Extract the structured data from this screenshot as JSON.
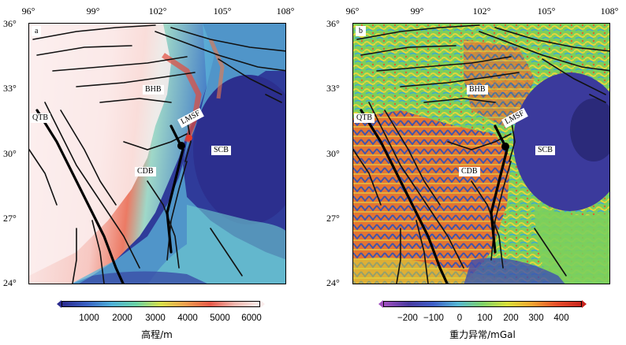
{
  "panels": [
    {
      "label": "a",
      "lon_ticks": [
        "96°",
        "99°",
        "102°",
        "105°",
        "108°"
      ],
      "lat_ticks": [
        "36°",
        "33°",
        "30°",
        "27°",
        "24°"
      ],
      "places": [
        "BHB",
        "QTB",
        "LMSF",
        "SCB",
        "CDB"
      ],
      "colorbar": {
        "ticks": [
          "1000",
          "2000",
          "3000",
          "4000",
          "5000",
          "6000"
        ],
        "title": "高程/m",
        "colors": [
          "#2b2b8f",
          "#3a62c4",
          "#4fb0d8",
          "#6ad2a6",
          "#d8e04a",
          "#f0a050",
          "#e85a4a",
          "#f2b8b0",
          "#fbeceb"
        ]
      }
    },
    {
      "label": "b",
      "lon_ticks": [
        "96°",
        "99°",
        "102°",
        "105°",
        "108°"
      ],
      "lat_ticks": [
        "36°",
        "33°",
        "30°",
        "27°",
        "24°"
      ],
      "places": [
        "BHB",
        "QTB",
        "LMSF",
        "SCB",
        "CDB"
      ],
      "colorbar": {
        "ticks": [
          "−200",
          "−100",
          "0",
          "100",
          "200",
          "300",
          "400"
        ],
        "title": "重力异常/mGal",
        "colors": [
          "#a24fc0",
          "#4a3ba0",
          "#3f5fc8",
          "#56b7d4",
          "#7fd36a",
          "#d9e03a",
          "#f3a632",
          "#e8502c",
          "#c8251e"
        ]
      }
    }
  ]
}
